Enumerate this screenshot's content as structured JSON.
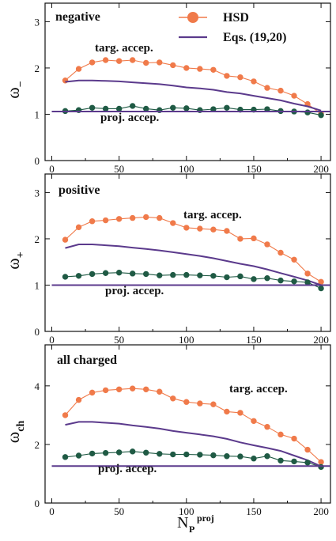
{
  "colors": {
    "hsd": "#f07a4a",
    "eqs": "#5b3a8c",
    "proj": "#1f5a44",
    "axis": "#111111"
  },
  "legend": {
    "hsd_label": "HSD",
    "eqs_label": "Eqs. (19,20)"
  },
  "x_axis": {
    "label_main": "N",
    "label_sub": "P",
    "label_sup": "proj",
    "ticks": [
      "0",
      "50",
      "100",
      "150",
      "200"
    ]
  },
  "chart_data": [
    {
      "type": "line",
      "panel_title": "negative",
      "ylabel_main": "ω",
      "ylabel_sub": "−",
      "xlim": [
        -5,
        207
      ],
      "ylim": [
        0,
        3.4
      ],
      "yticks": [
        "0",
        "1",
        "2",
        "3"
      ],
      "ytick_values": [
        0,
        1,
        2,
        3
      ],
      "annotations": [
        "targ. accep.",
        "proj. accep."
      ],
      "series": [
        {
          "name": "HSD",
          "acceptance": "target",
          "style": "markers+line",
          "x": [
            10,
            20,
            30,
            40,
            50,
            60,
            70,
            80,
            90,
            100,
            110,
            120,
            130,
            140,
            150,
            160,
            170,
            180,
            190,
            200
          ],
          "y": [
            1.73,
            1.98,
            2.12,
            2.17,
            2.15,
            2.17,
            2.11,
            2.12,
            2.06,
            2.0,
            1.98,
            1.96,
            1.83,
            1.8,
            1.71,
            1.57,
            1.51,
            1.4,
            1.22,
            1.01
          ]
        },
        {
          "name": "Eqs. (19,20)",
          "acceptance": "target",
          "style": "line",
          "x": [
            10,
            20,
            30,
            40,
            50,
            60,
            70,
            80,
            90,
            100,
            110,
            120,
            130,
            140,
            150,
            160,
            170,
            180,
            190,
            200
          ],
          "y": [
            1.7,
            1.73,
            1.73,
            1.72,
            1.71,
            1.69,
            1.67,
            1.65,
            1.62,
            1.58,
            1.56,
            1.53,
            1.48,
            1.45,
            1.4,
            1.35,
            1.3,
            1.23,
            1.17,
            1.08
          ]
        },
        {
          "name": "HSD",
          "acceptance": "projectile",
          "style": "markers+line",
          "x": [
            10,
            20,
            30,
            40,
            50,
            60,
            70,
            80,
            90,
            100,
            110,
            120,
            130,
            140,
            150,
            160,
            170,
            180,
            190,
            200
          ],
          "y": [
            1.07,
            1.09,
            1.14,
            1.12,
            1.12,
            1.18,
            1.12,
            1.09,
            1.14,
            1.13,
            1.09,
            1.11,
            1.14,
            1.1,
            1.1,
            1.11,
            1.07,
            1.06,
            1.04,
            0.98
          ]
        },
        {
          "name": "Eqs. (19,20)",
          "acceptance": "projectile",
          "style": "line",
          "x": [
            0,
            207
          ],
          "y": [
            1.06,
            1.06
          ]
        }
      ]
    },
    {
      "type": "line",
      "panel_title": "positive",
      "ylabel_main": "ω",
      "ylabel_sub": "+",
      "xlim": [
        -5,
        207
      ],
      "ylim": [
        0,
        3.4
      ],
      "yticks": [
        "0",
        "1",
        "2",
        "3"
      ],
      "ytick_values": [
        0,
        1,
        2,
        3
      ],
      "annotations": [
        "targ. accep.",
        "proj. accep."
      ],
      "series": [
        {
          "name": "HSD",
          "acceptance": "target",
          "style": "markers+line",
          "x": [
            10,
            20,
            30,
            40,
            50,
            60,
            70,
            80,
            90,
            100,
            110,
            120,
            130,
            140,
            150,
            160,
            170,
            180,
            190,
            200
          ],
          "y": [
            1.98,
            2.25,
            2.38,
            2.4,
            2.43,
            2.45,
            2.47,
            2.45,
            2.34,
            2.24,
            2.22,
            2.2,
            2.17,
            2.0,
            2.01,
            1.88,
            1.7,
            1.55,
            1.25,
            1.07
          ]
        },
        {
          "name": "Eqs. (19,20)",
          "acceptance": "target",
          "style": "line",
          "x": [
            10,
            20,
            30,
            40,
            50,
            60,
            70,
            80,
            90,
            100,
            110,
            120,
            130,
            140,
            150,
            160,
            170,
            180,
            190,
            200
          ],
          "y": [
            1.8,
            1.88,
            1.88,
            1.86,
            1.84,
            1.81,
            1.78,
            1.75,
            1.71,
            1.67,
            1.63,
            1.58,
            1.52,
            1.46,
            1.41,
            1.34,
            1.26,
            1.18,
            1.1,
            1.0
          ]
        },
        {
          "name": "HSD",
          "acceptance": "projectile",
          "style": "markers+line",
          "x": [
            10,
            20,
            30,
            40,
            50,
            60,
            70,
            80,
            90,
            100,
            110,
            120,
            130,
            140,
            150,
            160,
            170,
            180,
            190,
            200
          ],
          "y": [
            1.18,
            1.2,
            1.24,
            1.26,
            1.27,
            1.25,
            1.24,
            1.21,
            1.22,
            1.22,
            1.21,
            1.2,
            1.17,
            1.19,
            1.13,
            1.15,
            1.1,
            1.08,
            1.06,
            0.93
          ]
        },
        {
          "name": "Eqs. (19,20)",
          "acceptance": "projectile",
          "style": "line",
          "x": [
            0,
            207
          ],
          "y": [
            1.0,
            1.0
          ]
        }
      ]
    },
    {
      "type": "line",
      "panel_title": "all charged",
      "ylabel_main": "ω",
      "ylabel_sub": "ch",
      "xlim": [
        -5,
        207
      ],
      "ylim": [
        0,
        5.4
      ],
      "yticks": [
        "0",
        "2",
        "4"
      ],
      "ytick_values": [
        0,
        2,
        4
      ],
      "annotations": [
        "targ. accep.",
        "proj. accep."
      ],
      "series": [
        {
          "name": "HSD",
          "acceptance": "target",
          "style": "markers+line",
          "x": [
            10,
            20,
            30,
            40,
            50,
            60,
            70,
            80,
            90,
            100,
            110,
            120,
            130,
            140,
            150,
            160,
            170,
            180,
            190,
            200
          ],
          "y": [
            3.0,
            3.52,
            3.77,
            3.85,
            3.88,
            3.91,
            3.88,
            3.8,
            3.57,
            3.45,
            3.4,
            3.37,
            3.12,
            3.08,
            2.8,
            2.6,
            2.34,
            2.2,
            1.82,
            1.4
          ]
        },
        {
          "name": "Eqs. (19,20)",
          "acceptance": "target",
          "style": "line",
          "x": [
            10,
            20,
            30,
            40,
            50,
            60,
            70,
            80,
            90,
            100,
            110,
            120,
            130,
            140,
            150,
            160,
            170,
            180,
            190,
            200
          ],
          "y": [
            2.67,
            2.77,
            2.77,
            2.74,
            2.71,
            2.65,
            2.6,
            2.54,
            2.46,
            2.4,
            2.34,
            2.28,
            2.19,
            2.07,
            1.97,
            1.88,
            1.78,
            1.62,
            1.46,
            1.25
          ]
        },
        {
          "name": "HSD",
          "acceptance": "projectile",
          "style": "markers+line",
          "x": [
            10,
            20,
            30,
            40,
            50,
            60,
            70,
            80,
            90,
            100,
            110,
            120,
            130,
            140,
            150,
            160,
            170,
            180,
            190,
            200
          ],
          "y": [
            1.57,
            1.62,
            1.69,
            1.71,
            1.73,
            1.76,
            1.72,
            1.68,
            1.66,
            1.66,
            1.65,
            1.63,
            1.6,
            1.59,
            1.52,
            1.6,
            1.45,
            1.42,
            1.38,
            1.23
          ]
        },
        {
          "name": "Eqs. (19,20)",
          "acceptance": "projectile",
          "style": "line",
          "x": [
            0,
            207
          ],
          "y": [
            1.26,
            1.26
          ]
        }
      ]
    }
  ]
}
